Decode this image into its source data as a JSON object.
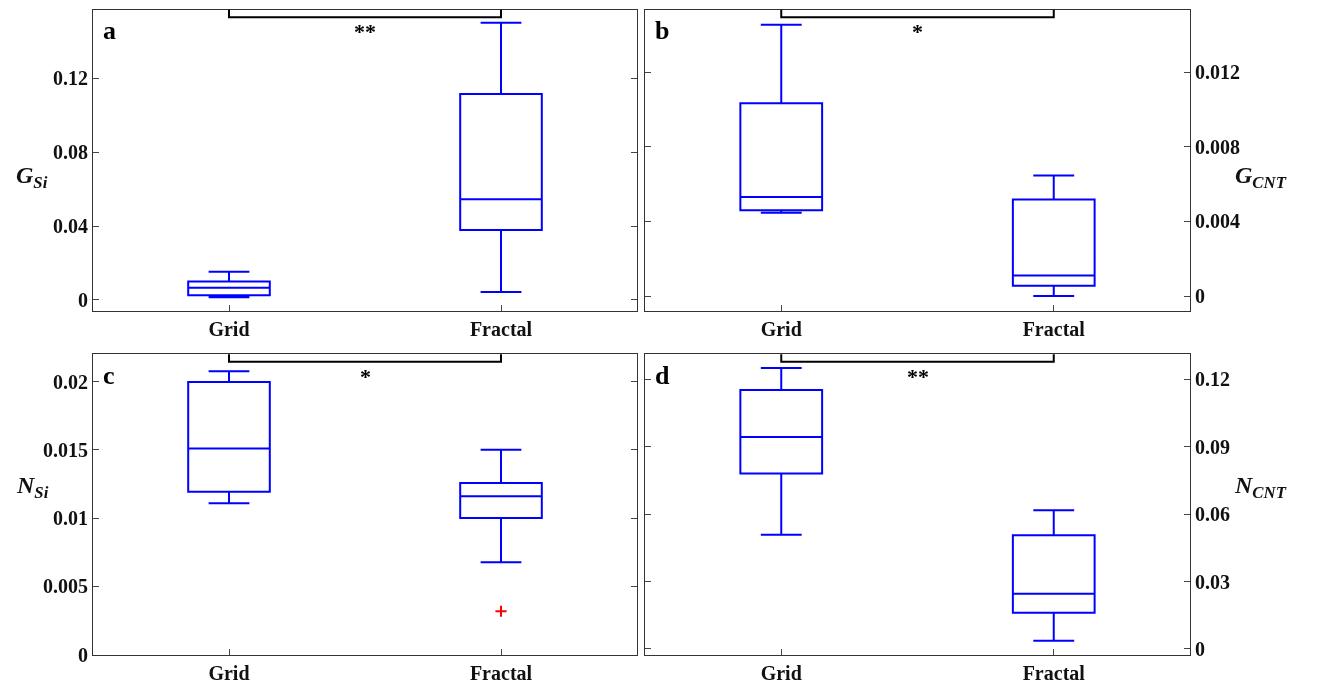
{
  "chart_data": [
    {
      "type": "box",
      "categories": [
        "Grid",
        "Fractal"
      ],
      "ylabel": "G$_{Si}$",
      "ylim": [
        -0.006,
        0.157
      ],
      "yticks": [
        {
          "value": 0,
          "label": "0"
        },
        0.04,
        0.08,
        0.12
      ],
      "color": "#0000ff",
      "annotations": [
        "a",
        "**"
      ],
      "boxes": [
        {
          "low": 0.0014,
          "q1": 0.0025,
          "median": 0.0066,
          "q3": 0.01,
          "high": 0.0152
        },
        {
          "low": 0.0043,
          "q1": 0.0378,
          "median": 0.0545,
          "q3": 0.1114,
          "high": 0.15
        }
      ]
    },
    {
      "type": "box",
      "categories": [
        "Grid",
        "Fractal"
      ],
      "y2label": "G$_{CNT}$",
      "y2lim": [
        -0.0008,
        0.01534
      ],
      "y2ticks": [
        {
          "value": 0,
          "label": "0"
        },
        0.004,
        0.008,
        0.012
      ],
      "annotations": [
        "b",
        "*"
      ],
      "series": [
        {
          "axis": "y2",
          "color": "#0000ff",
          "boxes": [
            {
              "low": 0.00446,
              "q1": 0.0046,
              "median": 0.00531,
              "q3": 0.01033,
              "high": 0.01454
            },
            {
              "low": 0.0,
              "q1": 0.00055,
              "median": 0.0011,
              "q3": 0.00517,
              "high": 0.00646
            }
          ]
        }
      ]
    },
    {
      "type": "box",
      "categories": [
        "Grid",
        "Fractal"
      ],
      "ylabel": "N$_{Si}$",
      "ylim": [
        0,
        0.022
      ],
      "yticks": [
        {
          "value": 0,
          "label": "0"
        },
        0.005,
        0.01,
        0.015,
        0.02
      ],
      "color": "#0000ff",
      "annotations": [
        "c",
        "*"
      ],
      "boxes": [
        {
          "low": 0.01108,
          "q1": 0.01193,
          "median": 0.0151,
          "q3": 0.01997,
          "high": 0.02076
        },
        {
          "low": 0.00676,
          "q1": 0.01,
          "median": 0.0116,
          "q3": 0.01257,
          "high": 0.015,
          "outliers": [
            0.00317
          ]
        }
      ]
    },
    {
      "type": "box",
      "categories": [
        "Grid",
        "Fractal"
      ],
      "y2label": "N$_{CNT}$",
      "y2lim": [
        -0.0025,
        0.1312
      ],
      "y2ticks": [
        {
          "value": 0,
          "label": "0"
        },
        0.03,
        0.06,
        0.09,
        0.12
      ],
      "annotations": [
        "d",
        "**"
      ],
      "series": [
        {
          "axis": "y2",
          "color": "#0000ff",
          "boxes": [
            {
              "low": 0.0508,
              "q1": 0.0781,
              "median": 0.0944,
              "q3": 0.1153,
              "high": 0.1251
            },
            {
              "low": 0.0036,
              "q1": 0.0161,
              "median": 0.0246,
              "q3": 0.0506,
              "high": 0.0618
            }
          ]
        }
      ]
    }
  ]
}
